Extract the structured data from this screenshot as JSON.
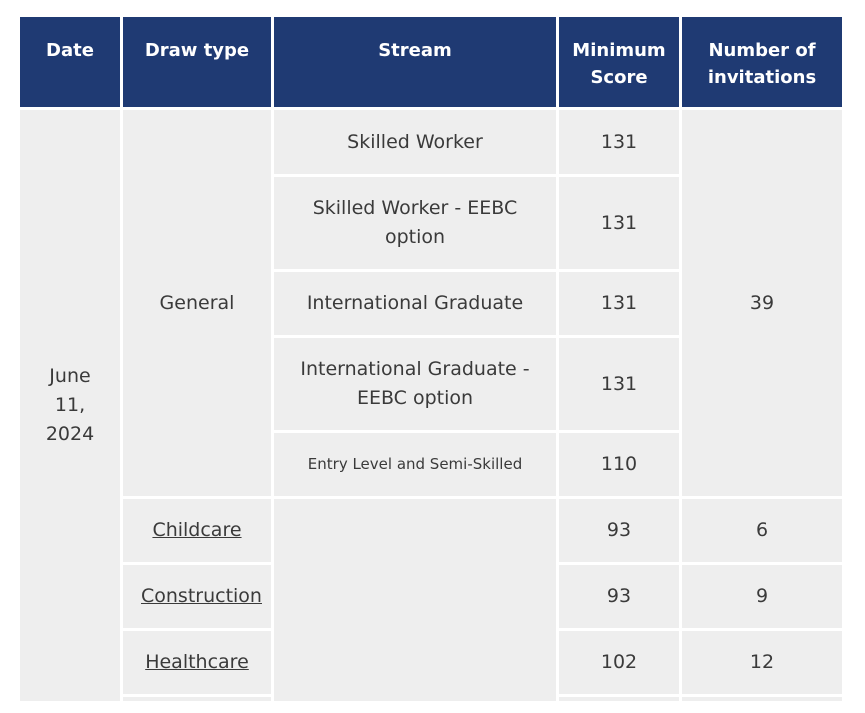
{
  "headers": {
    "date": "Date",
    "draw_type": "Draw type",
    "stream": "Stream",
    "min_score_line1": "Minimum",
    "min_score_line2": "Score",
    "invites_line1": "Number of",
    "invites_line2": "invitations"
  },
  "date": {
    "line1": "June",
    "line2": "11,",
    "line3": "2024"
  },
  "general": {
    "draw_type": "General",
    "invitations": "39",
    "streams": [
      {
        "name": "Skilled Worker",
        "score": "131"
      },
      {
        "name_line1": "Skilled Worker - EEBC",
        "name_line2": "option",
        "score": "131"
      },
      {
        "name": "International Graduate",
        "score": "131"
      },
      {
        "name_line1": "International Graduate -",
        "name_line2": "EEBC option",
        "score": "131"
      },
      {
        "name": "Entry Level and Semi-Skilled",
        "score": "110"
      }
    ]
  },
  "targeted": [
    {
      "draw_type": "Childcare",
      "score": "93",
      "invitations": "6"
    },
    {
      "draw_type": "Construction",
      "score": "93",
      "invitations": "9"
    },
    {
      "draw_type": "Healthcare",
      "score": "102",
      "invitations": "12"
    }
  ],
  "colors": {
    "header_bg": "#1f3a73",
    "cell_bg": "#eeeeee"
  }
}
